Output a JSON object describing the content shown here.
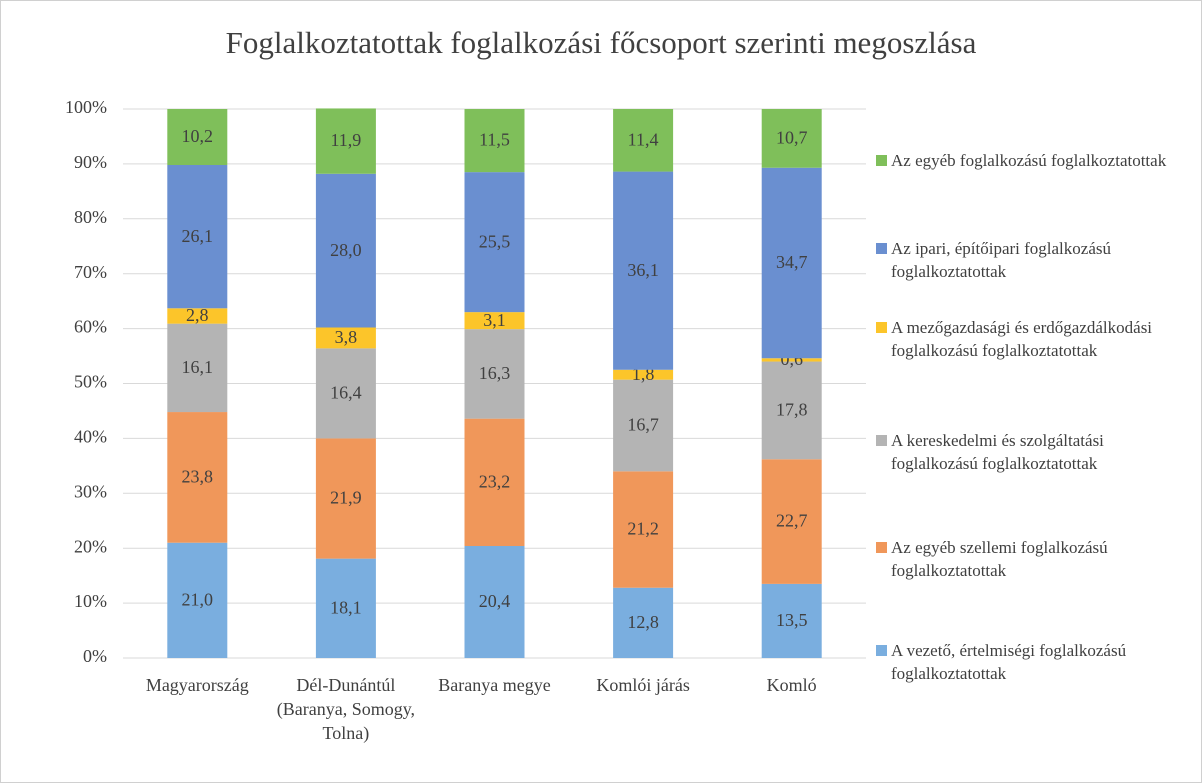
{
  "chart_data": {
    "type": "stacked_bar",
    "title": "Foglalkoztatottak foglalkozási főcsoport szerinti megoszlása",
    "categories": [
      "Magyarország",
      "Dél-Dunántúl (Baranya, Somogy, Tolna)",
      "Baranya megye",
      "Komlói járás",
      "Komló"
    ],
    "series": [
      {
        "name": "A vezető, értelmiségi foglalkozású foglalkoztatottak",
        "color": "#7aaedf",
        "values": [
          21.0,
          18.1,
          20.4,
          12.8,
          13.5
        ],
        "value_labels": [
          "21,0",
          "18,1",
          "20,4",
          "12,8",
          "13,5"
        ]
      },
      {
        "name": "Az egyéb szellemi foglalkozású foglalkoztatottak",
        "color": "#f0975a",
        "values": [
          23.8,
          21.9,
          23.2,
          21.2,
          22.7
        ],
        "value_labels": [
          "23,8",
          "21,9",
          "23,2",
          "21,2",
          "22,7"
        ]
      },
      {
        "name": "A kereskedelmi és szolgáltatási foglalkozású foglalkoztatottak",
        "color": "#b4b4b4",
        "values": [
          16.1,
          16.4,
          16.3,
          16.7,
          17.8
        ],
        "value_labels": [
          "16,1",
          "16,4",
          "16,3",
          "16,7",
          "17,8"
        ]
      },
      {
        "name": "A mezőgazdasági és erdőgazdálkodási foglalkozású foglalkoztatottak",
        "color": "#fcc52a",
        "values": [
          2.8,
          3.8,
          3.1,
          1.8,
          0.6
        ],
        "value_labels": [
          "2,8",
          "3,8",
          "3,1",
          "1,8",
          "0,6"
        ]
      },
      {
        "name": "Az ipari, építőipari foglalkozású foglalkoztatottak",
        "color": "#6a8fd0",
        "values": [
          26.1,
          28.0,
          25.5,
          36.1,
          34.7
        ],
        "value_labels": [
          "26,1",
          "28,0",
          "25,5",
          "36,1",
          "34,7"
        ]
      },
      {
        "name": "Az egyéb foglalkozású foglalkoztatottak",
        "color": "#7fbf5a",
        "values": [
          10.2,
          11.9,
          11.5,
          11.4,
          10.7
        ],
        "value_labels": [
          "10,2",
          "11,9",
          "11,5",
          "11,4",
          "10,7"
        ]
      }
    ],
    "ylim": [
      0,
      100
    ],
    "yticks": [
      {
        "value": 0,
        "label": "0%"
      },
      {
        "value": 10,
        "label": "10%"
      },
      {
        "value": 20,
        "label": "20%"
      },
      {
        "value": 30,
        "label": "30%"
      },
      {
        "value": 40,
        "label": "40%"
      },
      {
        "value": 50,
        "label": "50%"
      },
      {
        "value": 60,
        "label": "60%"
      },
      {
        "value": 70,
        "label": "70%"
      },
      {
        "value": 80,
        "label": "80%"
      },
      {
        "value": 90,
        "label": "90%"
      },
      {
        "value": 100,
        "label": "100%"
      }
    ],
    "grid": true,
    "legend": "right"
  }
}
